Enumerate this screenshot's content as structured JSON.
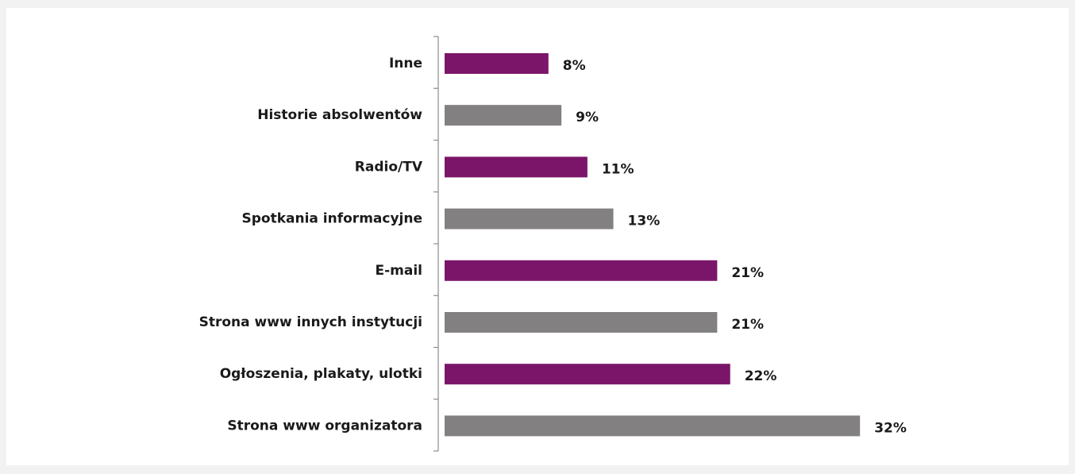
{
  "chart_data": {
    "type": "bar",
    "orientation": "horizontal",
    "categories": [
      "Inne",
      "Historie absolwentów",
      "Radio/TV",
      "Spotkania informacyjne",
      "E-mail",
      "Strona www innych instytucji",
      "Ogłoszenia, plakaty, ulotki",
      "Strona www organizatora"
    ],
    "values": [
      8,
      9,
      11,
      13,
      21,
      21,
      22,
      32
    ],
    "value_labels": [
      "8%",
      "9%",
      "11%",
      "13%",
      "21%",
      "21%",
      "22%",
      "32%"
    ],
    "unit": "%",
    "bar_colors": [
      "#7b156a",
      "#828080",
      "#7b156a",
      "#828080",
      "#7b156a",
      "#828080",
      "#7b156a",
      "#828080"
    ],
    "xlim": [
      0,
      32
    ],
    "grid": false,
    "legend": false
  }
}
